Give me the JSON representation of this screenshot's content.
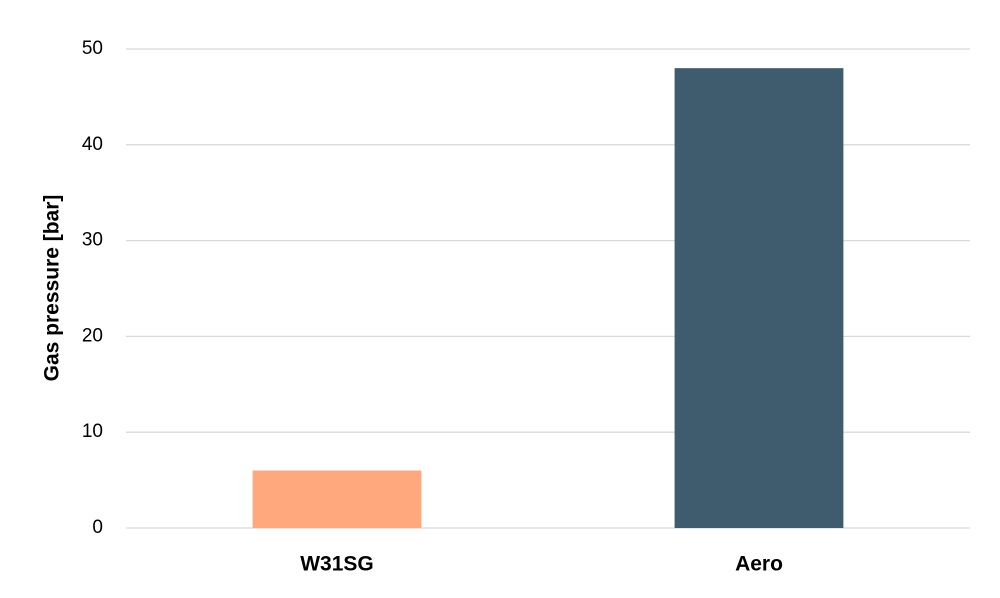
{
  "chart_data": {
    "type": "bar",
    "y_label": "Gas pressure [bar]",
    "categories": [
      "W31SG",
      "Aero"
    ],
    "values": [
      6,
      48
    ],
    "colors": [
      "#ffa87d",
      "#3f5b6e"
    ],
    "ylim": [
      0,
      50
    ],
    "yticks": [
      0,
      10,
      20,
      30,
      40,
      50
    ],
    "grid": true
  }
}
